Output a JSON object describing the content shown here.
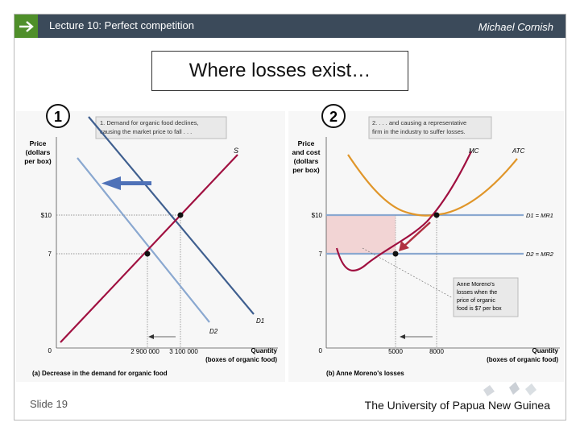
{
  "header": {
    "title": "Lecture 10:  Perfect competition",
    "author": "Michael Cornish"
  },
  "slide_title": "Where losses exist…",
  "footer": {
    "slide_number": "Slide 19",
    "university": "The University of Papua New Guinea"
  },
  "badges": {
    "left": "①",
    "right": "②"
  },
  "left_graph": {
    "callout": [
      "1. Demand for organic food declines,",
      "causing the market price to fall . . ."
    ],
    "y_axis_title": [
      "Price",
      "(dollars",
      "per box)"
    ],
    "y_ticks": [
      "$10",
      "7",
      "0"
    ],
    "x_ticks": [
      "2 900 000",
      "3 100 000"
    ],
    "x_axis_title": [
      "Quantity",
      "(boxes of organic food)"
    ],
    "curve_labels": {
      "supply": "S",
      "demand1": "D1",
      "demand2": "D2"
    },
    "caption": "(a) Decrease in the demand for organic food"
  },
  "right_graph": {
    "callout": [
      "2. . . . and causing a representative",
      "firm in the industry to suffer losses."
    ],
    "y_axis_title": [
      "Price",
      "and cost",
      "(dollars",
      "per box)"
    ],
    "y_ticks": [
      "$10",
      "7",
      "0"
    ],
    "x_ticks": [
      "5000",
      "8000"
    ],
    "x_axis_title": [
      "Quantity",
      "(boxes of organic food)"
    ],
    "curve_labels": {
      "mc": "MC",
      "atc": "ATC",
      "d1": "D1 = MR1",
      "d2": "D2 = MR2"
    },
    "note": [
      "Anne Moreno's",
      "losses when the",
      "price of organic",
      "food is $7 per box"
    ],
    "caption": "(b) Anne Moreno's losses"
  },
  "colors": {
    "header_bg": "#3b4a5a",
    "accent_green": "#4f8f2a",
    "supply": "#a01040",
    "demand1": "#3f5f8f",
    "demand2": "#8aa8d0",
    "mc": "#a01040",
    "atc": "#e0962a",
    "loss_area": "#f2d4d4"
  }
}
